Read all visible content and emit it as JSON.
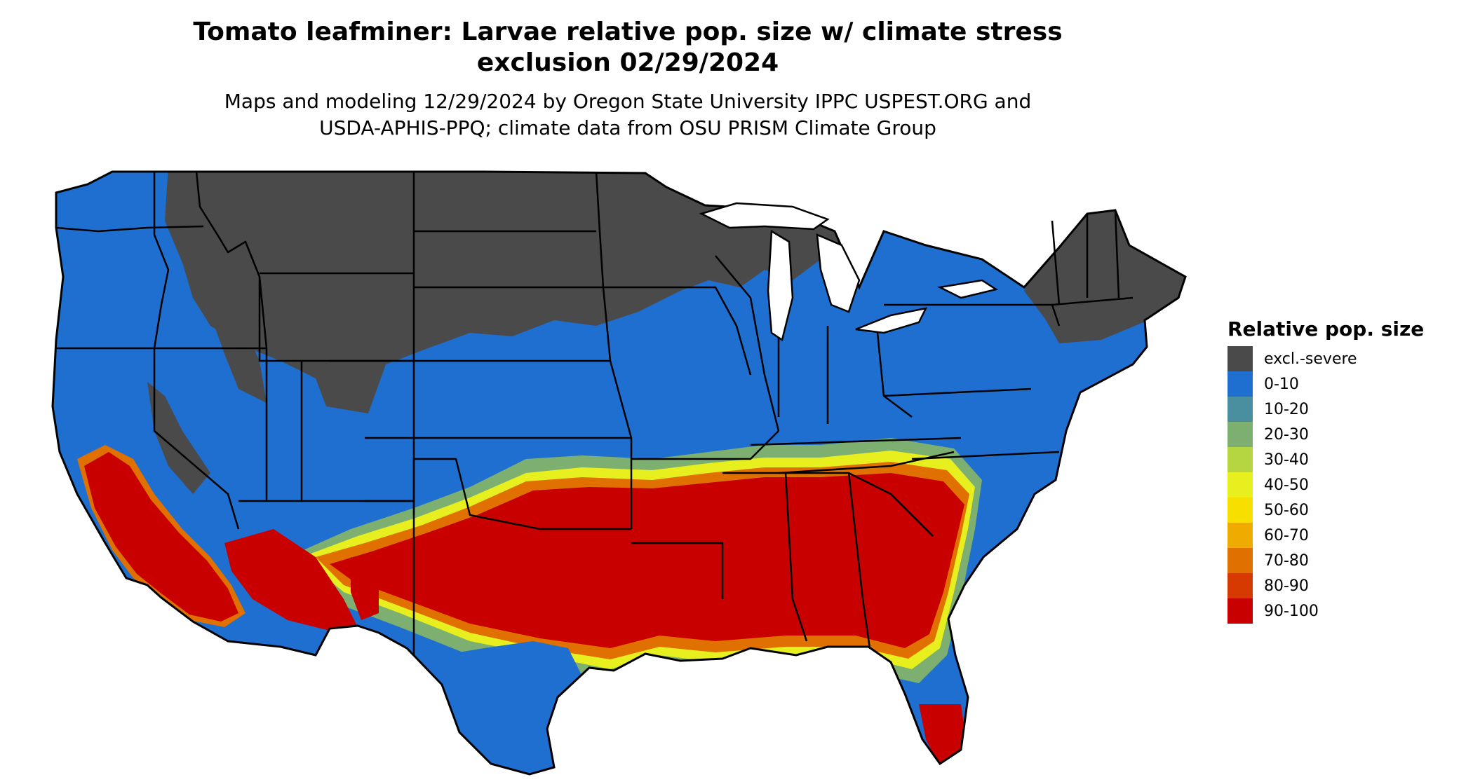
{
  "title": {
    "line1": "Tomato leafminer: Larvae relative pop. size w/ climate stress",
    "line2": "exclusion 02/29/2024"
  },
  "subtitle": {
    "line1": "Maps and modeling 12/29/2024 by Oregon State University IPPC USPEST.ORG and",
    "line2": "USDA-APHIS-PPQ; climate data from OSU PRISM Climate Group"
  },
  "legend": {
    "title": "Relative pop. size",
    "items": [
      {
        "label": "excl.-severe",
        "color": "#4a4a4a"
      },
      {
        "label": "0-10",
        "color": "#1f6fd1"
      },
      {
        "label": "10-20",
        "color": "#4a8fa0"
      },
      {
        "label": "20-30",
        "color": "#7db070"
      },
      {
        "label": "30-40",
        "color": "#b5d640"
      },
      {
        "label": "40-50",
        "color": "#e8ef1f"
      },
      {
        "label": "50-60",
        "color": "#f7df00"
      },
      {
        "label": "60-70",
        "color": "#efab00"
      },
      {
        "label": "70-80",
        "color": "#e07000"
      },
      {
        "label": "80-90",
        "color": "#d63a00"
      },
      {
        "label": "90-100",
        "color": "#c80000"
      }
    ]
  },
  "map": {
    "region": "contiguous United States",
    "colors": {
      "excluded": "#4a4a4a",
      "low": "#1f6fd1",
      "teal": "#4a8fa0",
      "green": "#7db070",
      "yellow": "#e8ef1f",
      "orange": "#e07000",
      "high": "#c80000",
      "boundary": "#000000"
    }
  }
}
